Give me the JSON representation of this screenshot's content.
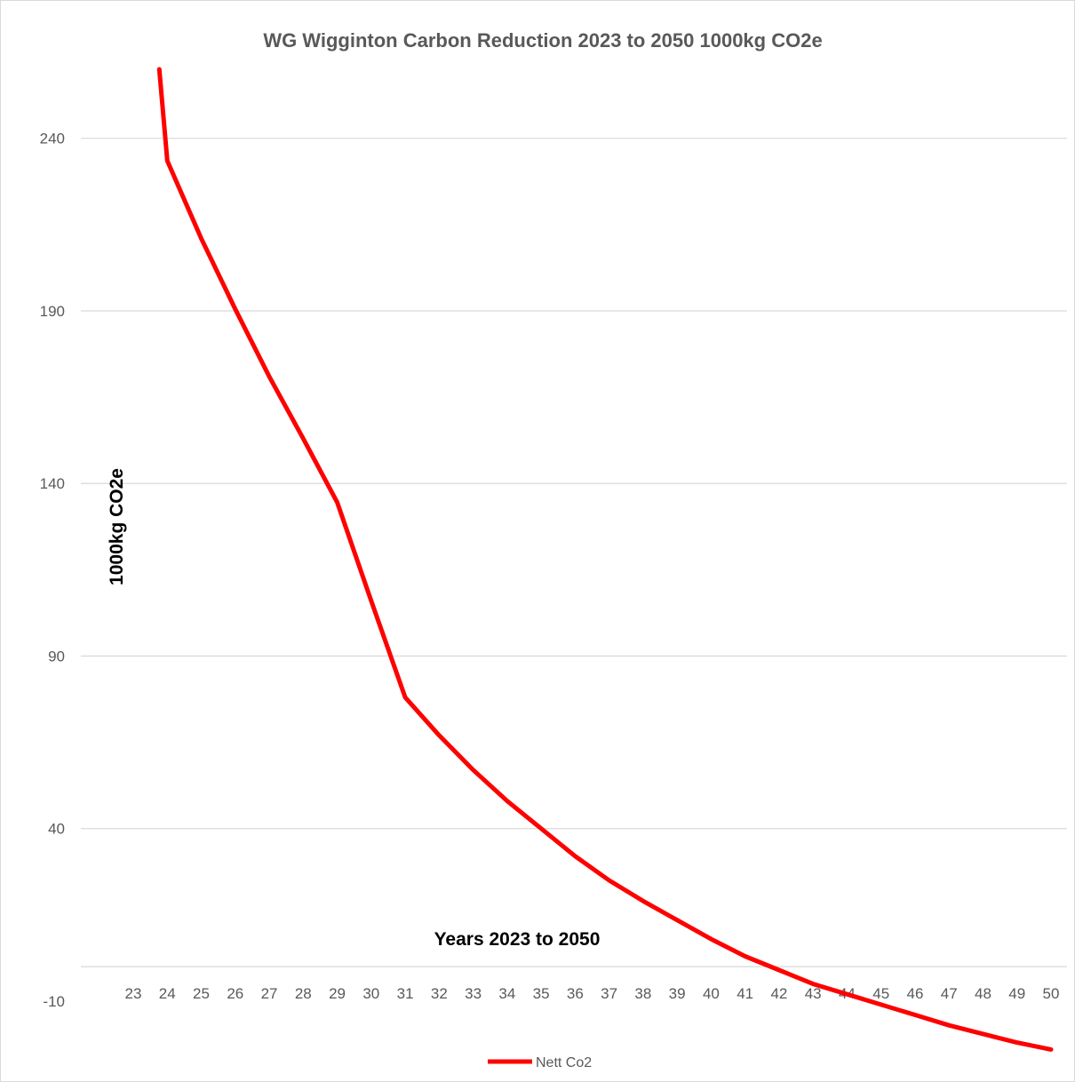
{
  "chart_data": {
    "type": "line",
    "title": "WG Wigginton Carbon Reduction 2023 to 2050 1000kg CO2e",
    "xlabel": "Years 2023 to 2050",
    "ylabel": "1000kg CO2e",
    "categories": [
      "23",
      "24",
      "25",
      "26",
      "27",
      "28",
      "29",
      "30",
      "31",
      "32",
      "33",
      "34",
      "35",
      "36",
      "37",
      "38",
      "39",
      "40",
      "41",
      "42",
      "43",
      "44",
      "45",
      "46",
      "47",
      "48",
      "49",
      "50"
    ],
    "y_ticks": [
      -10,
      40,
      90,
      140,
      190,
      240
    ],
    "ylim": [
      -10,
      260
    ],
    "grid": true,
    "legend": "bottom",
    "colors": {
      "series": "#ff0000",
      "grid": "#d9d9d9",
      "text": "#595959"
    },
    "series": [
      {
        "name": "Nett Co2",
        "values": [
          null,
          233.5,
          211,
          190.5,
          171,
          153,
          134.5,
          106,
          78,
          67,
          57,
          48,
          40,
          32,
          25,
          19,
          13.5,
          8,
          3,
          -1,
          -5,
          -8,
          -11,
          -14,
          -17,
          -19.5,
          -22,
          -24
        ]
      }
    ],
    "line_entry_from_top_near": "24"
  }
}
